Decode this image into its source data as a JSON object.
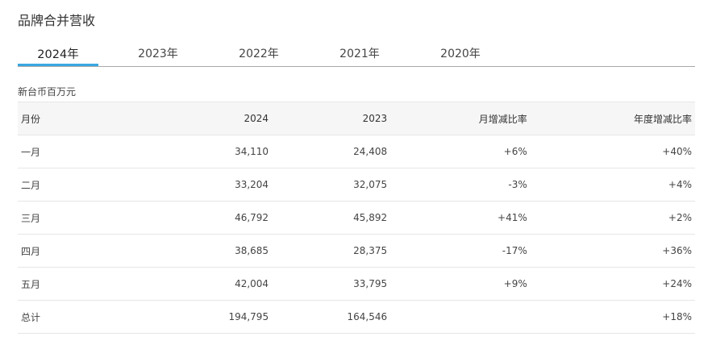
{
  "title": "品牌合并营收",
  "tabs": [
    {
      "label": "2024年",
      "active": true
    },
    {
      "label": "2023年",
      "active": false
    },
    {
      "label": "2022年",
      "active": false
    },
    {
      "label": "2021年",
      "active": false
    },
    {
      "label": "2020年",
      "active": false
    }
  ],
  "accent_color": "#3aa7e0",
  "unit_label": "新台币百万元",
  "table": {
    "headers": [
      "月份",
      "2024",
      "2023",
      "月增减比率",
      "年度增减比率"
    ],
    "rows": [
      [
        "一月",
        "34,110",
        "24,408",
        "+6%",
        "+40%"
      ],
      [
        "二月",
        "33,204",
        "32,075",
        "-3%",
        "+4%"
      ],
      [
        "三月",
        "46,792",
        "45,892",
        "+41%",
        "+2%"
      ],
      [
        "四月",
        "38,685",
        "28,375",
        "-17%",
        "+36%"
      ],
      [
        "五月",
        "42,004",
        "33,795",
        "+9%",
        "+24%"
      ],
      [
        "总计",
        "194,795",
        "164,546",
        "",
        "+18%"
      ]
    ]
  }
}
